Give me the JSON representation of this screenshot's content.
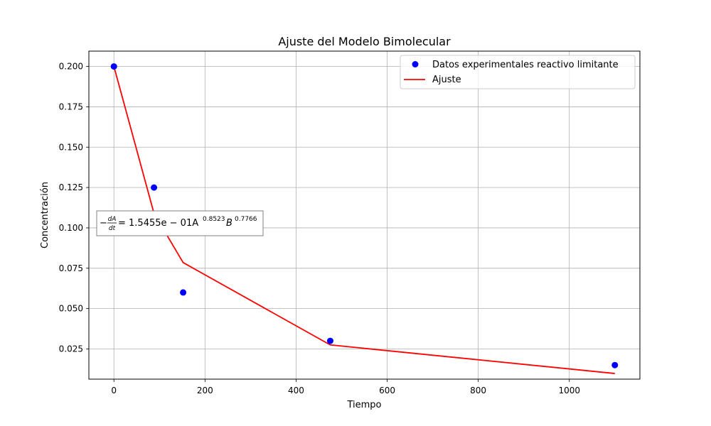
{
  "chart_data": {
    "type": "scatter",
    "title": "Ajuste del Modelo Bimolecular",
    "xlabel": "Tiempo",
    "ylabel": "Concentración",
    "xlim": [
      -55,
      1155
    ],
    "ylim": [
      0.0063,
      0.2095
    ],
    "xticks": [
      0,
      200,
      400,
      600,
      800,
      1000
    ],
    "yticks": [
      0.025,
      0.05,
      0.075,
      0.1,
      0.125,
      0.15,
      0.175,
      0.2
    ],
    "xtick_labels": [
      "0",
      "200",
      "400",
      "600",
      "800",
      "1000"
    ],
    "ytick_labels": [
      "0.025",
      "0.050",
      "0.075",
      "0.100",
      "0.125",
      "0.150",
      "0.175",
      "0.200"
    ],
    "grid": true,
    "legend_position": "top-right",
    "series": [
      {
        "name": "Datos experimentales reactivo limitante",
        "kind": "scatter",
        "color": "#0000ff",
        "x": [
          0,
          88,
          152,
          475,
          1100
        ],
        "y": [
          0.2,
          0.125,
          0.06,
          0.03,
          0.015
        ]
      },
      {
        "name": "Ajuste",
        "kind": "line",
        "color": "#ff0000",
        "x": [
          0,
          88,
          152,
          475,
          1100
        ],
        "y": [
          0.2,
          0.109,
          0.0785,
          0.0275,
          0.0098
        ]
      }
    ],
    "annotation": {
      "prefix": "−",
      "frac_num": "dA",
      "frac_den": "dt",
      "equation": " = 1.5455e − 01A",
      "exp_a": "0.8523",
      "var_b": "B",
      "exp_b": "0.7766"
    }
  }
}
